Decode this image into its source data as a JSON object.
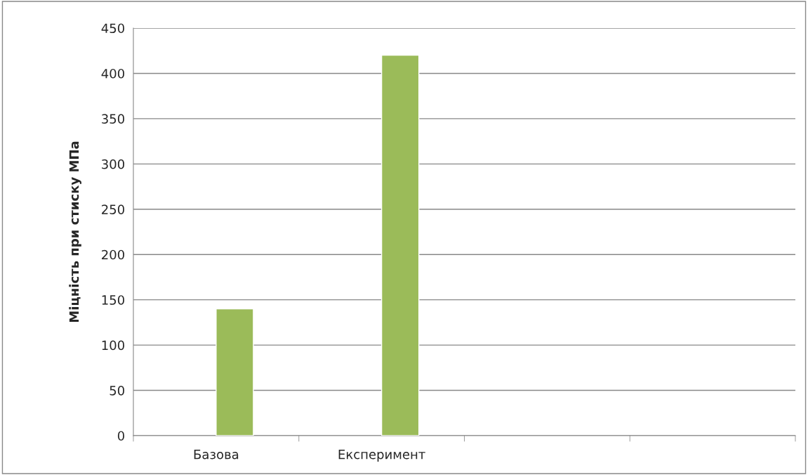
{
  "chart_data": {
    "type": "bar",
    "ylabel": "Міцність при стиску МПа",
    "categories": [
      "Базова",
      "Експеримент",
      null,
      null
    ],
    "series": [
      {
        "values": [
          null,
          null,
          null,
          null
        ]
      },
      {
        "color": "#9bbb59",
        "values": [
          140,
          420,
          null,
          null
        ]
      }
    ],
    "ylim": [
      0,
      450
    ],
    "yticks": [
      0,
      50,
      100,
      150,
      200,
      250,
      300,
      350,
      400,
      450
    ],
    "grid": "y"
  }
}
